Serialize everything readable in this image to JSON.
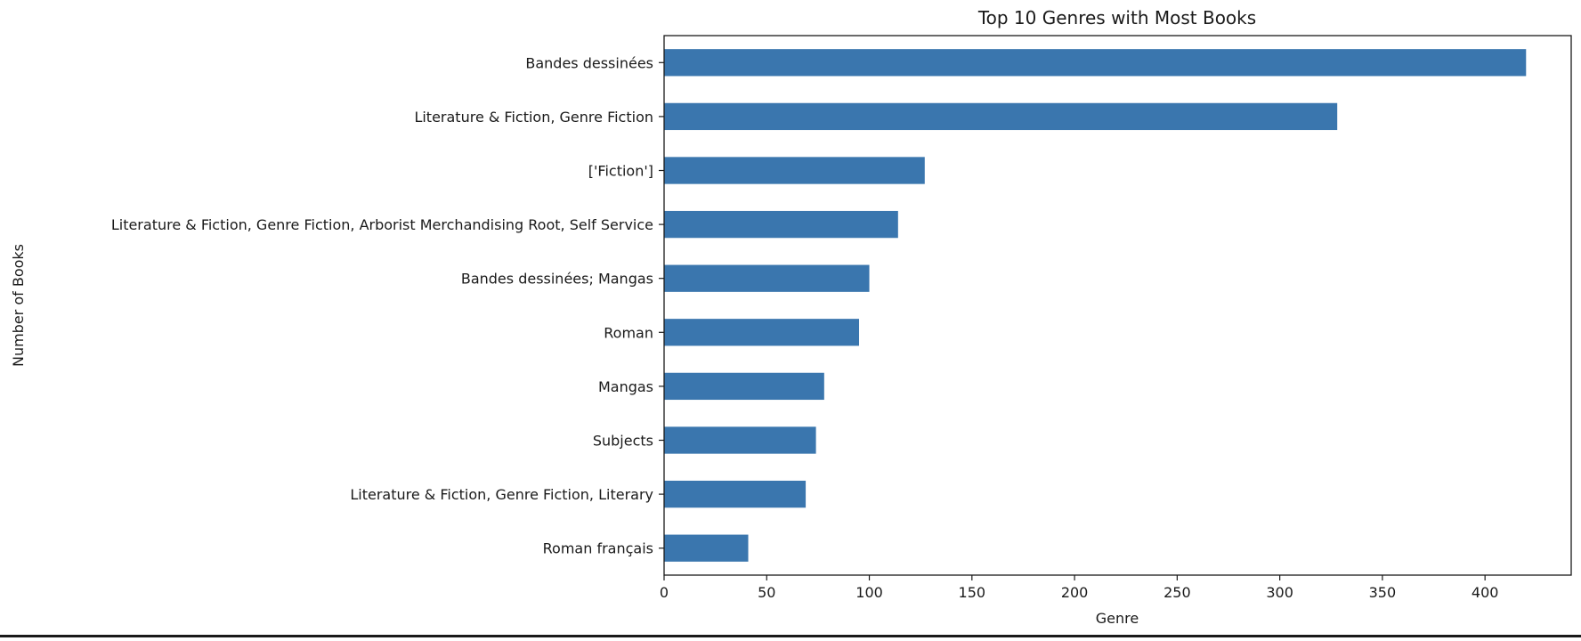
{
  "chart_data": {
    "type": "bar",
    "orientation": "horizontal",
    "title": "Top 10 Genres with Most Books",
    "xlabel": "Genre",
    "ylabel": "Number of Books",
    "categories": [
      "Bandes dessinées",
      "Literature & Fiction, Genre Fiction",
      "['Fiction']",
      "Literature & Fiction, Genre Fiction, Arborist Merchandising Root, Self Service",
      "Bandes dessinées; Mangas",
      "Roman",
      "Mangas",
      "Subjects",
      "Literature & Fiction, Genre Fiction, Literary",
      "Roman français"
    ],
    "values": [
      420,
      328,
      127,
      114,
      100,
      95,
      78,
      74,
      69,
      41
    ],
    "xlim": [
      0,
      442
    ],
    "xticks": [
      0,
      50,
      100,
      150,
      200,
      250,
      300,
      350,
      400
    ],
    "grid": false,
    "bar_color": "#3a76ae"
  }
}
